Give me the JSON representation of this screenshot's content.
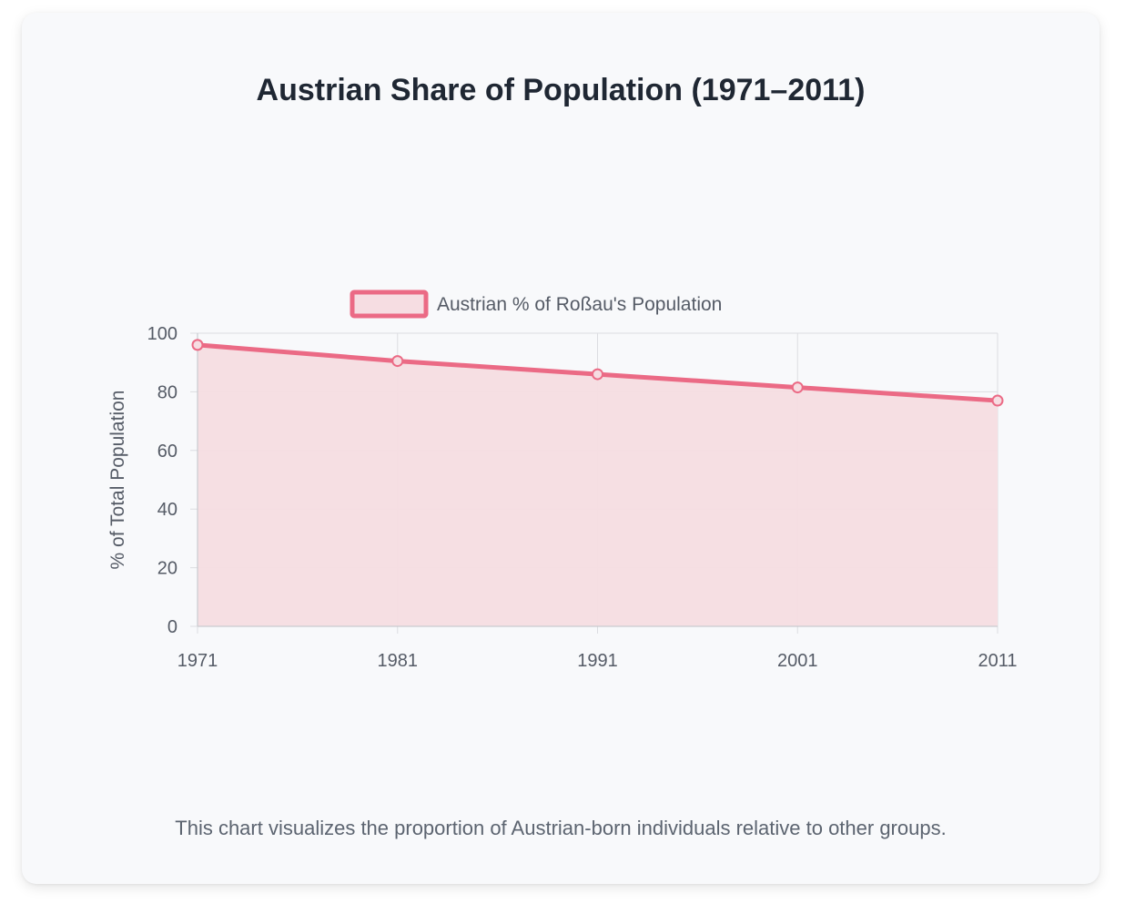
{
  "page": {
    "title": "Austrian Share of Population (1971–2011)",
    "caption": "This chart visualizes the proportion of Austrian-born individuals relative to other groups."
  },
  "colors": {
    "line": "#eb6a85",
    "fill": "#f6dde2",
    "grid": "#dcdde1",
    "text": "#555b66"
  },
  "chart_data": {
    "type": "area",
    "x": [
      "1971",
      "1981",
      "1991",
      "2001",
      "2011"
    ],
    "series": [
      {
        "name": "Austrian % of Roßau's Population",
        "values": [
          96,
          90.5,
          86,
          81.5,
          77
        ]
      }
    ],
    "ylabel": "% of Total Population",
    "xlabel": "",
    "ylim": [
      0,
      100
    ],
    "yticks": [
      0,
      20,
      40,
      60,
      80,
      100
    ],
    "grid": true,
    "legend": "top-center"
  }
}
